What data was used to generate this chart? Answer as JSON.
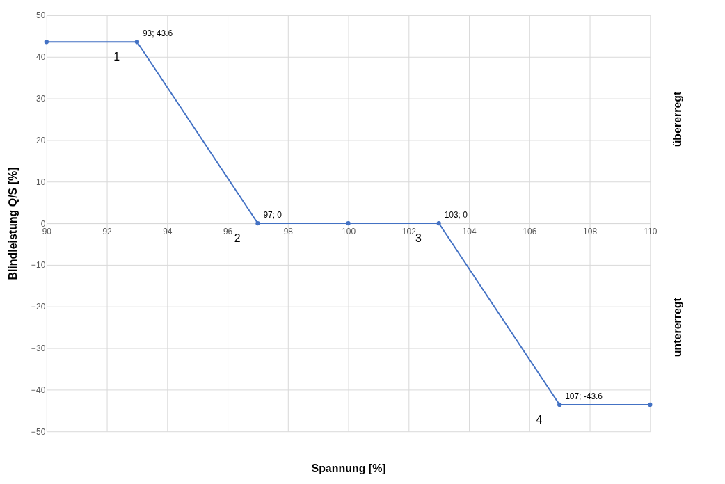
{
  "chart_data": {
    "type": "line",
    "xlabel": "Spannung [%]",
    "ylabel": "Blindleistung Q/S [%]",
    "x": [
      90,
      93,
      97,
      100,
      103,
      107,
      110
    ],
    "series": [
      {
        "color": "#4472c4",
        "values": [
          43.6,
          43.6,
          0,
          0,
          0,
          -43.6,
          -43.6
        ]
      }
    ],
    "xlim": [
      90,
      110
    ],
    "xticks": [
      90,
      92,
      94,
      96,
      98,
      100,
      102,
      104,
      106,
      108,
      110
    ],
    "ylim": [
      -50,
      50
    ],
    "yticks": [
      -50,
      -40,
      -30,
      -20,
      -10,
      0,
      10,
      20,
      30,
      40,
      50
    ],
    "grid": true,
    "marker": "circle",
    "line_style": "solid",
    "annotations": [
      {
        "text": "93; 43.6",
        "x": 93,
        "y": 43.6
      },
      {
        "text": "1",
        "x": 93,
        "y": 43.6
      },
      {
        "text": "97; 0",
        "x": 97,
        "y": 0
      },
      {
        "text": "2",
        "x": 97,
        "y": 0
      },
      {
        "text": "103; 0",
        "x": 103,
        "y": 0
      },
      {
        "text": "3",
        "x": 103,
        "y": 0
      },
      {
        "text": "107; -43.6",
        "x": 107,
        "y": -43.6
      },
      {
        "text": "4",
        "x": 107,
        "y": -43.6
      },
      "übererregt",
      "untererregt"
    ]
  }
}
